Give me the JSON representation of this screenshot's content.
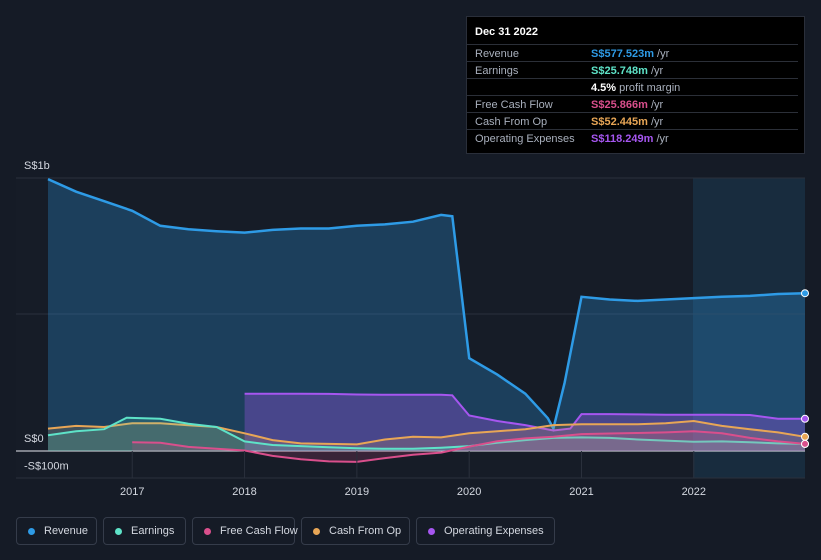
{
  "tooltip": {
    "date": "Dec 31 2022",
    "rows": [
      {
        "label": "Revenue",
        "value": "S$577.523m",
        "unit": "/yr",
        "color": "#2e9be6"
      },
      {
        "label": "Earnings",
        "value": "S$25.748m",
        "unit": "/yr",
        "color": "#5ee3c8"
      },
      {
        "label": "",
        "value": "4.5%",
        "unit": "profit margin",
        "color": "#ffffff"
      },
      {
        "label": "Free Cash Flow",
        "value": "S$25.866m",
        "unit": "/yr",
        "color": "#d94f8c"
      },
      {
        "label": "Cash From Op",
        "value": "S$52.445m",
        "unit": "/yr",
        "color": "#e8a656"
      },
      {
        "label": "Operating Expenses",
        "value": "S$118.249m",
        "unit": "/yr",
        "color": "#a656f0"
      }
    ]
  },
  "legend": [
    {
      "label": "Revenue",
      "color": "#2e9be6"
    },
    {
      "label": "Earnings",
      "color": "#5ee3c8"
    },
    {
      "label": "Free Cash Flow",
      "color": "#d94f8c"
    },
    {
      "label": "Cash From Op",
      "color": "#e8a656"
    },
    {
      "label": "Operating Expenses",
      "color": "#a656f0"
    }
  ],
  "chart_data": {
    "type": "area",
    "y_tick_labels": [
      "S$1b",
      "S$0",
      "-S$100m"
    ],
    "x_tick_labels": [
      "2017",
      "2018",
      "2019",
      "2020",
      "2021",
      "2022"
    ],
    "ylim": [
      -100,
      1000
    ],
    "xlim": [
      2016.25,
      2022.99
    ],
    "forecast_shade_start": 2022.0,
    "series": [
      {
        "name": "Revenue",
        "color": "#2e9be6",
        "x": [
          2016.25,
          2016.5,
          2016.75,
          2017.0,
          2017.25,
          2017.5,
          2017.75,
          2018.0,
          2018.25,
          2018.5,
          2018.75,
          2019.0,
          2019.25,
          2019.5,
          2019.75,
          2019.85,
          2020.0,
          2020.25,
          2020.5,
          2020.7,
          2020.75,
          2020.85,
          2021.0,
          2021.25,
          2021.5,
          2021.75,
          2022.0,
          2022.25,
          2022.5,
          2022.75,
          2022.99
        ],
        "y": [
          996,
          950,
          915,
          880,
          825,
          812,
          805,
          800,
          810,
          815,
          815,
          825,
          830,
          840,
          865,
          860,
          340,
          280,
          210,
          120,
          82,
          250,
          565,
          555,
          550,
          555,
          560,
          565,
          568,
          575,
          578
        ]
      },
      {
        "name": "Earnings",
        "color": "#5ee3c8",
        "x": [
          2016.25,
          2016.5,
          2016.75,
          2016.95,
          2017.25,
          2017.5,
          2017.75,
          2018.0,
          2018.25,
          2018.5,
          2018.75,
          2019.0,
          2019.25,
          2019.5,
          2019.75,
          2020.0,
          2020.25,
          2020.5,
          2020.75,
          2021.0,
          2021.25,
          2021.5,
          2021.75,
          2022.0,
          2022.25,
          2022.5,
          2022.75,
          2022.99
        ],
        "y": [
          58,
          72,
          80,
          122,
          118,
          100,
          88,
          35,
          22,
          18,
          14,
          10,
          8,
          8,
          12,
          18,
          30,
          40,
          48,
          50,
          48,
          42,
          38,
          34,
          35,
          32,
          28,
          26
        ]
      },
      {
        "name": "Free Cash Flow",
        "color": "#d94f8c",
        "x": [
          2016.25,
          2016.5,
          2016.75,
          2017.0,
          2017.25,
          2017.5,
          2017.75,
          2018.0,
          2018.25,
          2018.5,
          2018.75,
          2019.0,
          2019.25,
          2019.5,
          2019.75,
          2020.0,
          2020.25,
          2020.5,
          2020.75,
          2021.0,
          2021.25,
          2021.5,
          2021.75,
          2022.0,
          2022.25,
          2022.5,
          2022.75,
          2022.99
        ],
        "y": [
          null,
          null,
          null,
          32,
          30,
          15,
          8,
          2,
          -18,
          -30,
          -38,
          -40,
          -26,
          -14,
          -6,
          16,
          36,
          46,
          52,
          62,
          64,
          66,
          68,
          72,
          65,
          48,
          35,
          26
        ]
      },
      {
        "name": "Cash From Op",
        "color": "#e8a656",
        "x": [
          2016.25,
          2016.5,
          2016.75,
          2017.0,
          2017.25,
          2017.5,
          2017.75,
          2018.0,
          2018.25,
          2018.5,
          2018.75,
          2019.0,
          2019.25,
          2019.5,
          2019.75,
          2020.0,
          2020.25,
          2020.5,
          2020.75,
          2021.0,
          2021.25,
          2021.5,
          2021.75,
          2022.0,
          2022.25,
          2022.5,
          2022.75,
          2022.99
        ],
        "y": [
          82,
          92,
          88,
          102,
          102,
          94,
          88,
          65,
          40,
          28,
          26,
          24,
          42,
          52,
          50,
          65,
          72,
          80,
          95,
          98,
          98,
          98,
          102,
          110,
          92,
          80,
          68,
          52
        ]
      },
      {
        "name": "Operating Expenses",
        "color": "#a656f0",
        "x": [
          2018.0,
          2018.25,
          2018.5,
          2018.75,
          2019.0,
          2019.25,
          2019.5,
          2019.75,
          2019.85,
          2020.0,
          2020.25,
          2020.5,
          2020.75,
          2020.9,
          2021.0,
          2021.25,
          2021.5,
          2021.75,
          2022.0,
          2022.25,
          2022.5,
          2022.75,
          2022.99
        ],
        "y": [
          210,
          210,
          210,
          209,
          207,
          206,
          206,
          206,
          204,
          130,
          110,
          95,
          75,
          82,
          135,
          135,
          134,
          133,
          133,
          133,
          132,
          118,
          118
        ]
      }
    ]
  }
}
